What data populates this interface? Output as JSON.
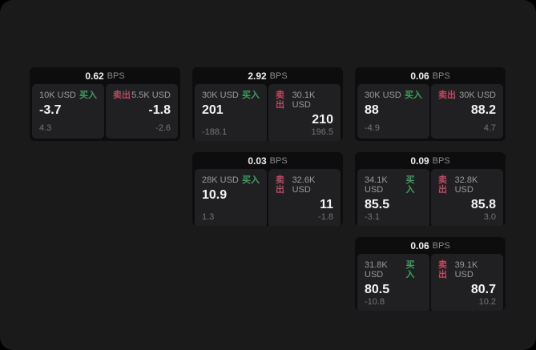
{
  "labels": {
    "buy": "买入",
    "sell": "卖出",
    "bps_unit": "BPS"
  },
  "colors": {
    "buy_green": "#3da05c",
    "sell_red": "#bf4a5f",
    "background": "#1a1a1b",
    "card_background": "#0d0d0e",
    "panel_background": "#202023"
  },
  "cards": [
    {
      "row": 1,
      "col": 1,
      "bps": "0.62",
      "buy": {
        "amount": "10K USD",
        "value": "-3.7",
        "sub": "4.3"
      },
      "sell": {
        "amount": "5.5K USD",
        "value": "-1.8",
        "sub": "-2.6"
      }
    },
    {
      "row": 1,
      "col": 2,
      "bps": "2.92",
      "buy": {
        "amount": "30K USD",
        "value": "201",
        "sub": "-188.1"
      },
      "sell": {
        "amount": "30.1K USD",
        "value": "210",
        "sub": "196.5"
      }
    },
    {
      "row": 1,
      "col": 3,
      "bps": "0.06",
      "buy": {
        "amount": "30K USD",
        "value": "88",
        "sub": "-4.9"
      },
      "sell": {
        "amount": "30K USD",
        "value": "88.2",
        "sub": "4.7"
      }
    },
    {
      "row": 2,
      "col": 2,
      "bps": "0.03",
      "buy": {
        "amount": "28K USD",
        "value": "10.9",
        "sub": "1.3"
      },
      "sell": {
        "amount": "32.6K USD",
        "value": "11",
        "sub": "-1.8"
      }
    },
    {
      "row": 2,
      "col": 3,
      "bps": "0.09",
      "buy": {
        "amount": "34.1K USD",
        "value": "85.5",
        "sub": "-3.1"
      },
      "sell": {
        "amount": "32.8K USD",
        "value": "85.8",
        "sub": "3.0"
      }
    },
    {
      "row": 3,
      "col": 3,
      "bps": "0.06",
      "buy": {
        "amount": "31.8K USD",
        "value": "80.5",
        "sub": "-10.8"
      },
      "sell": {
        "amount": "39.1K USD",
        "value": "80.7",
        "sub": "10.2"
      }
    }
  ]
}
